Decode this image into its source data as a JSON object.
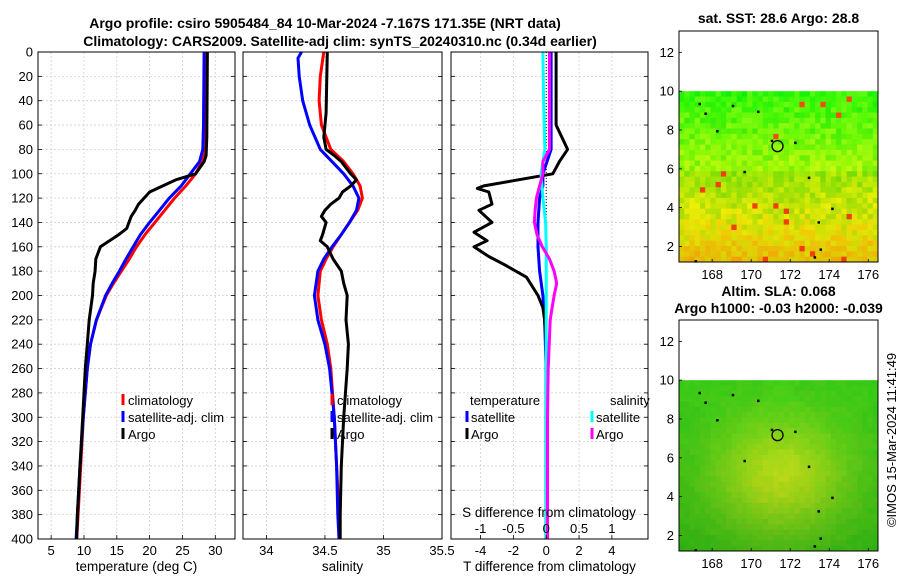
{
  "title": {
    "line1": "Argo profile: csiro 5905484_84 10-Mar-2024 -7.167S 171.35E (NRT data)",
    "line2": "Climatology: CARS2009. Satellite-adj clim: synTS_20240310.nc (0.34d earlier)"
  },
  "colors": {
    "climatology": "#ff0000",
    "satellite": "#0000ff",
    "argo": "#000000",
    "sat_salinity": "#00ffff",
    "argo_salinity": "#ff00ff"
  },
  "chart_data": [
    {
      "type": "line",
      "id": "temperature",
      "xlabel": "temperature (deg C)",
      "ylabel": "depth",
      "xlim": [
        3,
        33
      ],
      "ylim": [
        0,
        400
      ],
      "xticks": [
        5,
        10,
        15,
        20,
        25,
        30
      ],
      "yticks": [
        0,
        20,
        40,
        60,
        80,
        100,
        120,
        140,
        160,
        180,
        200,
        220,
        240,
        260,
        280,
        300,
        320,
        340,
        360,
        380,
        400
      ],
      "legend": [
        "climatology",
        "satellite-adj. clim",
        "Argo"
      ],
      "series": [
        {
          "name": "climatology",
          "color": "#ff0000",
          "depth": [
            0,
            60,
            80,
            90,
            100,
            110,
            120,
            130,
            140,
            150,
            160,
            170,
            180,
            190,
            200,
            220,
            240,
            260,
            300,
            340,
            380,
            400
          ],
          "values": [
            28.6,
            28.5,
            28.4,
            28.0,
            27.0,
            25.5,
            23.8,
            22.3,
            20.8,
            19.3,
            18.0,
            16.9,
            15.7,
            14.5,
            13.4,
            11.9,
            11.0,
            10.5,
            9.9,
            9.5,
            9.1,
            8.9
          ]
        },
        {
          "name": "satellite-adj. clim",
          "color": "#0000ff",
          "depth": [
            0,
            60,
            80,
            90,
            100,
            110,
            120,
            130,
            140,
            150,
            160,
            170,
            180,
            190,
            200,
            220,
            240,
            260,
            300,
            340,
            380,
            400
          ],
          "values": [
            28.3,
            28.2,
            28.1,
            27.6,
            26.2,
            24.8,
            23.0,
            21.5,
            20.0,
            18.6,
            17.5,
            16.4,
            15.4,
            14.3,
            13.3,
            11.9,
            11.0,
            10.5,
            9.9,
            9.4,
            9.0,
            8.8
          ]
        },
        {
          "name": "Argo",
          "color": "#000000",
          "depth": [
            0,
            70,
            85,
            90,
            100,
            105,
            110,
            115,
            125,
            130,
            135,
            145,
            150,
            160,
            170,
            180,
            190,
            200,
            220,
            240,
            260,
            300,
            340,
            380,
            400
          ],
          "values": [
            28.8,
            28.7,
            28.6,
            28.3,
            27.0,
            24.0,
            22.0,
            20.0,
            18.3,
            17.8,
            17.2,
            16.5,
            15.3,
            12.5,
            11.8,
            11.7,
            11.4,
            11.3,
            10.8,
            10.5,
            10.2,
            9.8,
            9.4,
            9.0,
            8.9
          ]
        }
      ]
    },
    {
      "type": "line",
      "id": "salinity",
      "xlabel": "salinity",
      "ylabel": "depth",
      "xlim": [
        33.8,
        35.5
      ],
      "xticks": [
        34,
        34.5,
        35,
        35.5
      ],
      "legend": [
        "climatology",
        "satellite-adj. clim",
        "Argo"
      ],
      "series": [
        {
          "name": "climatology",
          "color": "#ff0000",
          "depth": [
            0,
            20,
            40,
            60,
            80,
            90,
            100,
            110,
            120,
            130,
            140,
            150,
            160,
            170,
            180,
            200,
            220,
            240,
            260,
            300,
            340,
            380,
            400
          ],
          "values": [
            34.49,
            34.46,
            34.45,
            34.47,
            34.55,
            34.66,
            34.74,
            34.8,
            34.82,
            34.78,
            34.71,
            34.64,
            34.57,
            34.51,
            34.46,
            34.44,
            34.47,
            34.52,
            34.55,
            34.58,
            34.6,
            34.62,
            34.62
          ]
        },
        {
          "name": "satellite-adj. clim",
          "color": "#0000ff",
          "depth": [
            0,
            5,
            20,
            40,
            60,
            80,
            90,
            100,
            110,
            120,
            130,
            140,
            150,
            160,
            170,
            180,
            200,
            220,
            240,
            260,
            300,
            340,
            380,
            400
          ],
          "values": [
            34.3,
            34.27,
            34.28,
            34.31,
            34.37,
            34.46,
            34.56,
            34.66,
            34.74,
            34.79,
            34.77,
            34.71,
            34.64,
            34.56,
            34.49,
            34.44,
            34.41,
            34.44,
            34.5,
            34.54,
            34.58,
            34.6,
            34.61,
            34.62
          ]
        },
        {
          "name": "Argo",
          "color": "#000000",
          "depth": [
            0,
            50,
            70,
            80,
            85,
            90,
            100,
            105,
            110,
            115,
            120,
            125,
            130,
            135,
            140,
            150,
            155,
            160,
            170,
            180,
            190,
            200,
            220,
            240,
            260,
            300,
            340,
            380,
            400
          ],
          "values": [
            34.52,
            34.51,
            34.49,
            34.51,
            34.58,
            34.64,
            34.72,
            34.77,
            34.72,
            34.65,
            34.62,
            34.55,
            34.5,
            34.47,
            34.51,
            34.48,
            34.46,
            34.52,
            34.57,
            34.64,
            34.66,
            34.69,
            34.68,
            34.7,
            34.69,
            34.66,
            34.64,
            34.63,
            34.63
          ]
        }
      ]
    },
    {
      "type": "line",
      "id": "difference",
      "xlabel": "T difference from climatology",
      "xlabel2": "S difference from climatology",
      "xlim": [
        -5.8,
        6.2
      ],
      "xticks": [
        -4,
        -2,
        0,
        2,
        4
      ],
      "xticks2": [
        -1,
        -0.5,
        0,
        0.5,
        1
      ],
      "legend_temperature": {
        "heading": "temperature",
        "items": [
          "satellite",
          "Argo"
        ]
      },
      "legend_salinity": {
        "heading": "salinity",
        "items": [
          "satellite",
          "Argo"
        ]
      },
      "series": [
        {
          "name": "T satellite",
          "color": "#0000ff",
          "depth": [
            0,
            60,
            80,
            100,
            110,
            120,
            140,
            160,
            180,
            200,
            220,
            260,
            300,
            400
          ],
          "values": [
            0.3,
            0.3,
            0.3,
            -0.2,
            -0.2,
            -0.4,
            -0.5,
            -0.5,
            -0.4,
            -0.2,
            -0.1,
            0,
            0,
            0
          ]
        },
        {
          "name": "T Argo",
          "color": "#000000",
          "depth": [
            0,
            60,
            80,
            90,
            100,
            110,
            112,
            115,
            125,
            130,
            140,
            148,
            155,
            160,
            168,
            175,
            185,
            200,
            210,
            220,
            240,
            260,
            300,
            400
          ],
          "values": [
            0.6,
            0.6,
            1.3,
            0.8,
            0.4,
            -3.8,
            -4.2,
            -3.5,
            -3.3,
            -4.1,
            -3.3,
            -4.4,
            -3.6,
            -4.4,
            -3.5,
            -2.5,
            -1.2,
            -0.5,
            -0.2,
            -0.1,
            0,
            0,
            0,
            0
          ]
        },
        {
          "name": "S satellite",
          "color": "#00ffff",
          "depth": [
            0,
            40,
            60,
            80,
            90,
            100,
            120,
            140,
            160,
            200,
            240,
            300,
            400
          ],
          "values": [
            -0.05,
            -0.04,
            -0.03,
            -0.02,
            -0.05,
            -0.08,
            -0.05,
            -0.01,
            0,
            0,
            0,
            0,
            0
          ]
        },
        {
          "name": "S Argo",
          "color": "#ff00ff",
          "depth": [
            0,
            80,
            90,
            100,
            110,
            120,
            130,
            140,
            150,
            160,
            170,
            180,
            190,
            200,
            220,
            260,
            300,
            400
          ],
          "values": [
            0.05,
            0.05,
            -0.05,
            -0.05,
            -0.1,
            -0.15,
            -0.17,
            -0.18,
            -0.14,
            -0.06,
            0.05,
            0.12,
            0.16,
            0.12,
            0.06,
            0.03,
            0.02,
            0.02
          ]
        }
      ]
    },
    {
      "type": "heatmap",
      "id": "sst-map",
      "title": "sat. SST: 28.6 Argo: 28.8",
      "xlim": [
        166.3,
        176.5
      ],
      "ylim": [
        1.2,
        13.1
      ],
      "data_top": 10,
      "xticks": [
        168,
        170,
        172,
        174,
        176
      ],
      "yticks": [
        2,
        4,
        6,
        8,
        10,
        12
      ],
      "marker": [
        171.35,
        7.17
      ]
    },
    {
      "type": "heatmap",
      "id": "sla-map",
      "title": "Altim. SLA: 0.068",
      "title2": "Argo h1000: -0.03 h2000: -0.039",
      "xlim": [
        166.3,
        176.5
      ],
      "ylim": [
        1.2,
        13.1
      ],
      "data_top": 10,
      "xticks": [
        168,
        170,
        172,
        174,
        176
      ],
      "yticks": [
        2,
        4,
        6,
        8,
        10,
        12
      ],
      "marker": [
        171.35,
        7.17
      ]
    }
  ],
  "credit": "©IMOS 15-Mar-2024 11:41:49"
}
